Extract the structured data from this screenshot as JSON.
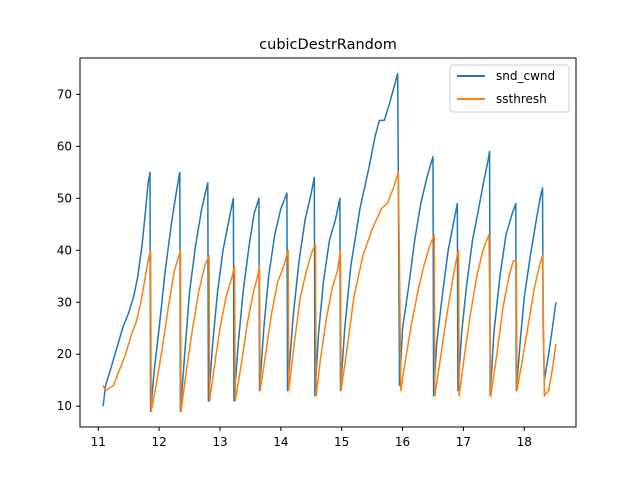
{
  "chart_data": {
    "type": "line",
    "title": "cubicDestrRandom",
    "xlabel": "",
    "ylabel": "",
    "xlim": [
      10.7,
      18.85
    ],
    "ylim": [
      6,
      77
    ],
    "xticks": [
      11,
      12,
      13,
      14,
      15,
      16,
      17,
      18
    ],
    "yticks": [
      10,
      20,
      30,
      40,
      50,
      60,
      70
    ],
    "grid": false,
    "legend_position": "top-right",
    "series": [
      {
        "name": "snd_cwnd",
        "color": "#1f77b4",
        "points": [
          [
            11.08,
            10
          ],
          [
            11.12,
            14
          ],
          [
            11.2,
            17
          ],
          [
            11.3,
            21
          ],
          [
            11.4,
            25
          ],
          [
            11.5,
            28
          ],
          [
            11.58,
            31
          ],
          [
            11.65,
            35
          ],
          [
            11.72,
            41
          ],
          [
            11.78,
            48
          ],
          [
            11.82,
            53
          ],
          [
            11.85,
            55
          ],
          [
            11.86,
            9
          ],
          [
            11.92,
            17
          ],
          [
            12.0,
            25
          ],
          [
            12.1,
            36
          ],
          [
            12.2,
            45
          ],
          [
            12.28,
            51
          ],
          [
            12.34,
            55
          ],
          [
            12.35,
            9
          ],
          [
            12.42,
            20
          ],
          [
            12.5,
            32
          ],
          [
            12.6,
            41
          ],
          [
            12.7,
            48
          ],
          [
            12.8,
            53
          ],
          [
            12.81,
            11
          ],
          [
            12.88,
            22
          ],
          [
            12.96,
            32
          ],
          [
            13.05,
            40
          ],
          [
            13.15,
            46
          ],
          [
            13.22,
            50
          ],
          [
            13.23,
            11
          ],
          [
            13.3,
            22
          ],
          [
            13.38,
            32
          ],
          [
            13.48,
            41
          ],
          [
            13.56,
            47
          ],
          [
            13.64,
            50
          ],
          [
            13.65,
            13
          ],
          [
            13.72,
            25
          ],
          [
            13.8,
            35
          ],
          [
            13.9,
            43
          ],
          [
            14.0,
            48
          ],
          [
            14.1,
            51
          ],
          [
            14.11,
            13
          ],
          [
            14.2,
            27
          ],
          [
            14.3,
            38
          ],
          [
            14.4,
            46
          ],
          [
            14.5,
            51
          ],
          [
            14.55,
            54
          ],
          [
            14.56,
            12
          ],
          [
            14.62,
            24
          ],
          [
            14.7,
            34
          ],
          [
            14.8,
            42
          ],
          [
            14.9,
            46
          ],
          [
            14.97,
            50
          ],
          [
            14.98,
            13
          ],
          [
            15.05,
            25
          ],
          [
            15.15,
            37
          ],
          [
            15.3,
            48
          ],
          [
            15.45,
            56
          ],
          [
            15.55,
            62
          ],
          [
            15.62,
            65
          ],
          [
            15.7,
            65
          ],
          [
            15.78,
            68
          ],
          [
            15.85,
            71
          ],
          [
            15.92,
            74
          ],
          [
            15.93,
            55
          ],
          [
            15.95,
            14
          ],
          [
            16.0,
            25
          ],
          [
            16.1,
            33
          ],
          [
            16.2,
            42
          ],
          [
            16.3,
            49
          ],
          [
            16.4,
            54
          ],
          [
            16.5,
            58
          ],
          [
            16.51,
            12
          ],
          [
            16.56,
            22
          ],
          [
            16.65,
            31
          ],
          [
            16.75,
            40
          ],
          [
            16.85,
            46
          ],
          [
            16.9,
            49
          ],
          [
            16.91,
            13
          ],
          [
            16.97,
            24
          ],
          [
            17.05,
            33
          ],
          [
            17.15,
            42
          ],
          [
            17.25,
            48
          ],
          [
            17.33,
            53
          ],
          [
            17.4,
            57
          ],
          [
            17.43,
            59
          ],
          [
            17.44,
            12
          ],
          [
            17.5,
            24
          ],
          [
            17.6,
            35
          ],
          [
            17.7,
            43
          ],
          [
            17.8,
            47
          ],
          [
            17.86,
            49
          ],
          [
            17.87,
            13
          ],
          [
            17.93,
            22
          ],
          [
            18.0,
            31
          ],
          [
            18.1,
            39
          ],
          [
            18.2,
            46
          ],
          [
            18.26,
            50
          ],
          [
            18.3,
            52
          ],
          [
            18.31,
            26
          ],
          [
            18.33,
            15
          ],
          [
            18.4,
            20
          ],
          [
            18.45,
            24
          ],
          [
            18.52,
            30
          ]
        ]
      },
      {
        "name": "ssthresh",
        "color": "#ff7f0e",
        "points": [
          [
            11.08,
            14
          ],
          [
            11.12,
            13
          ],
          [
            11.25,
            14
          ],
          [
            11.35,
            17
          ],
          [
            11.45,
            20
          ],
          [
            11.55,
            24
          ],
          [
            11.62,
            26
          ],
          [
            11.7,
            30
          ],
          [
            11.76,
            34
          ],
          [
            11.82,
            38
          ],
          [
            11.86,
            40
          ],
          [
            11.87,
            9
          ],
          [
            11.95,
            14
          ],
          [
            12.05,
            21
          ],
          [
            12.15,
            29
          ],
          [
            12.25,
            36
          ],
          [
            12.35,
            40
          ],
          [
            12.36,
            9
          ],
          [
            12.45,
            17
          ],
          [
            12.55,
            25
          ],
          [
            12.65,
            32
          ],
          [
            12.75,
            37
          ],
          [
            12.82,
            39
          ],
          [
            12.83,
            11
          ],
          [
            12.9,
            17
          ],
          [
            13.0,
            25
          ],
          [
            13.1,
            31
          ],
          [
            13.2,
            35
          ],
          [
            13.24,
            37
          ],
          [
            13.25,
            11
          ],
          [
            13.35,
            18
          ],
          [
            13.45,
            26
          ],
          [
            13.55,
            32
          ],
          [
            13.62,
            35
          ],
          [
            13.65,
            37
          ],
          [
            13.66,
            13
          ],
          [
            13.75,
            20
          ],
          [
            13.85,
            28
          ],
          [
            13.95,
            34
          ],
          [
            14.05,
            37
          ],
          [
            14.12,
            40
          ],
          [
            14.13,
            13
          ],
          [
            14.22,
            22
          ],
          [
            14.32,
            31
          ],
          [
            14.42,
            36
          ],
          [
            14.52,
            40
          ],
          [
            14.57,
            41
          ],
          [
            14.58,
            12
          ],
          [
            14.65,
            19
          ],
          [
            14.75,
            27
          ],
          [
            14.85,
            33
          ],
          [
            14.93,
            36
          ],
          [
            14.98,
            40
          ],
          [
            14.99,
            13
          ],
          [
            15.1,
            22
          ],
          [
            15.2,
            31
          ],
          [
            15.35,
            39
          ],
          [
            15.5,
            44
          ],
          [
            15.65,
            48
          ],
          [
            15.75,
            49
          ],
          [
            15.85,
            52
          ],
          [
            15.93,
            55
          ],
          [
            15.95,
            37
          ],
          [
            15.97,
            13
          ],
          [
            16.05,
            19
          ],
          [
            16.15,
            26
          ],
          [
            16.25,
            32
          ],
          [
            16.35,
            37
          ],
          [
            16.45,
            41
          ],
          [
            16.52,
            43
          ],
          [
            16.53,
            12
          ],
          [
            16.62,
            19
          ],
          [
            16.72,
            27
          ],
          [
            16.82,
            34
          ],
          [
            16.88,
            38
          ],
          [
            16.92,
            40
          ],
          [
            16.93,
            12
          ],
          [
            17.02,
            20
          ],
          [
            17.12,
            28
          ],
          [
            17.22,
            35
          ],
          [
            17.32,
            40
          ],
          [
            17.42,
            43
          ],
          [
            17.45,
            12
          ],
          [
            17.55,
            20
          ],
          [
            17.65,
            29
          ],
          [
            17.75,
            35
          ],
          [
            17.82,
            38
          ],
          [
            17.87,
            38
          ],
          [
            17.88,
            13
          ],
          [
            17.97,
            19
          ],
          [
            18.07,
            26
          ],
          [
            18.17,
            33
          ],
          [
            18.25,
            37
          ],
          [
            18.3,
            39
          ],
          [
            18.31,
            32
          ],
          [
            18.33,
            12
          ],
          [
            18.4,
            13
          ],
          [
            18.46,
            17
          ],
          [
            18.52,
            22
          ]
        ]
      }
    ]
  }
}
